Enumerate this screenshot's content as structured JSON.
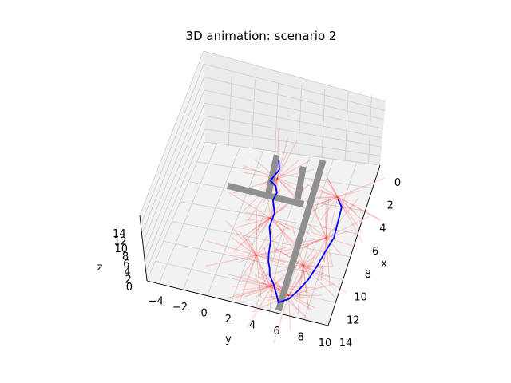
{
  "chart_data": {
    "type": "3d-line",
    "title": "3D animation: scenario 2",
    "xlabel": "x",
    "ylabel": "y",
    "zlabel": "z",
    "xlim": [
      0,
      14
    ],
    "ylim": [
      -5,
      10
    ],
    "zlim": [
      0,
      15
    ],
    "x_ticks": [
      "0",
      "2",
      "4",
      "6",
      "8",
      "10",
      "12",
      "14"
    ],
    "y_ticks": [
      "−4",
      "−2",
      "0",
      "2",
      "4",
      "6",
      "8",
      "10"
    ],
    "z_ticks": [
      "0",
      "2",
      "4",
      "6",
      "8",
      "10",
      "12",
      "14"
    ],
    "pane_color": "#f2f2f2",
    "grid_color": "#cccccc",
    "path_color": "#0000ff",
    "ray_color": "#ff0000",
    "obstacle_color": "#909090",
    "grid": true,
    "series": [
      {
        "points": [
          [
            0.8,
            1.6
          ],
          [
            1.6,
            1.9
          ],
          [
            2.7,
            1.5
          ],
          [
            3.1,
            2.1
          ],
          [
            3.7,
            2.4
          ],
          [
            4.4,
            2.3
          ],
          [
            5.5,
            2.8
          ],
          [
            6.8,
            2.8
          ],
          [
            8.0,
            3.3
          ],
          [
            9.1,
            3.5
          ],
          [
            9.8,
            3.7
          ],
          [
            10.4,
            4.0
          ],
          [
            11.0,
            4.2
          ],
          [
            11.6,
            4.7
          ],
          [
            12.4,
            5.2
          ],
          [
            13.1,
            5.6
          ],
          [
            12.6,
            6.3
          ],
          [
            11.7,
            6.8
          ],
          [
            10.6,
            7.3
          ],
          [
            9.4,
            7.6
          ],
          [
            7.9,
            7.9
          ],
          [
            6.7,
            8.2
          ],
          [
            5.3,
            8.1
          ],
          [
            4.0,
            8.0
          ],
          [
            3.4,
            7.5
          ]
        ]
      }
    ]
  }
}
